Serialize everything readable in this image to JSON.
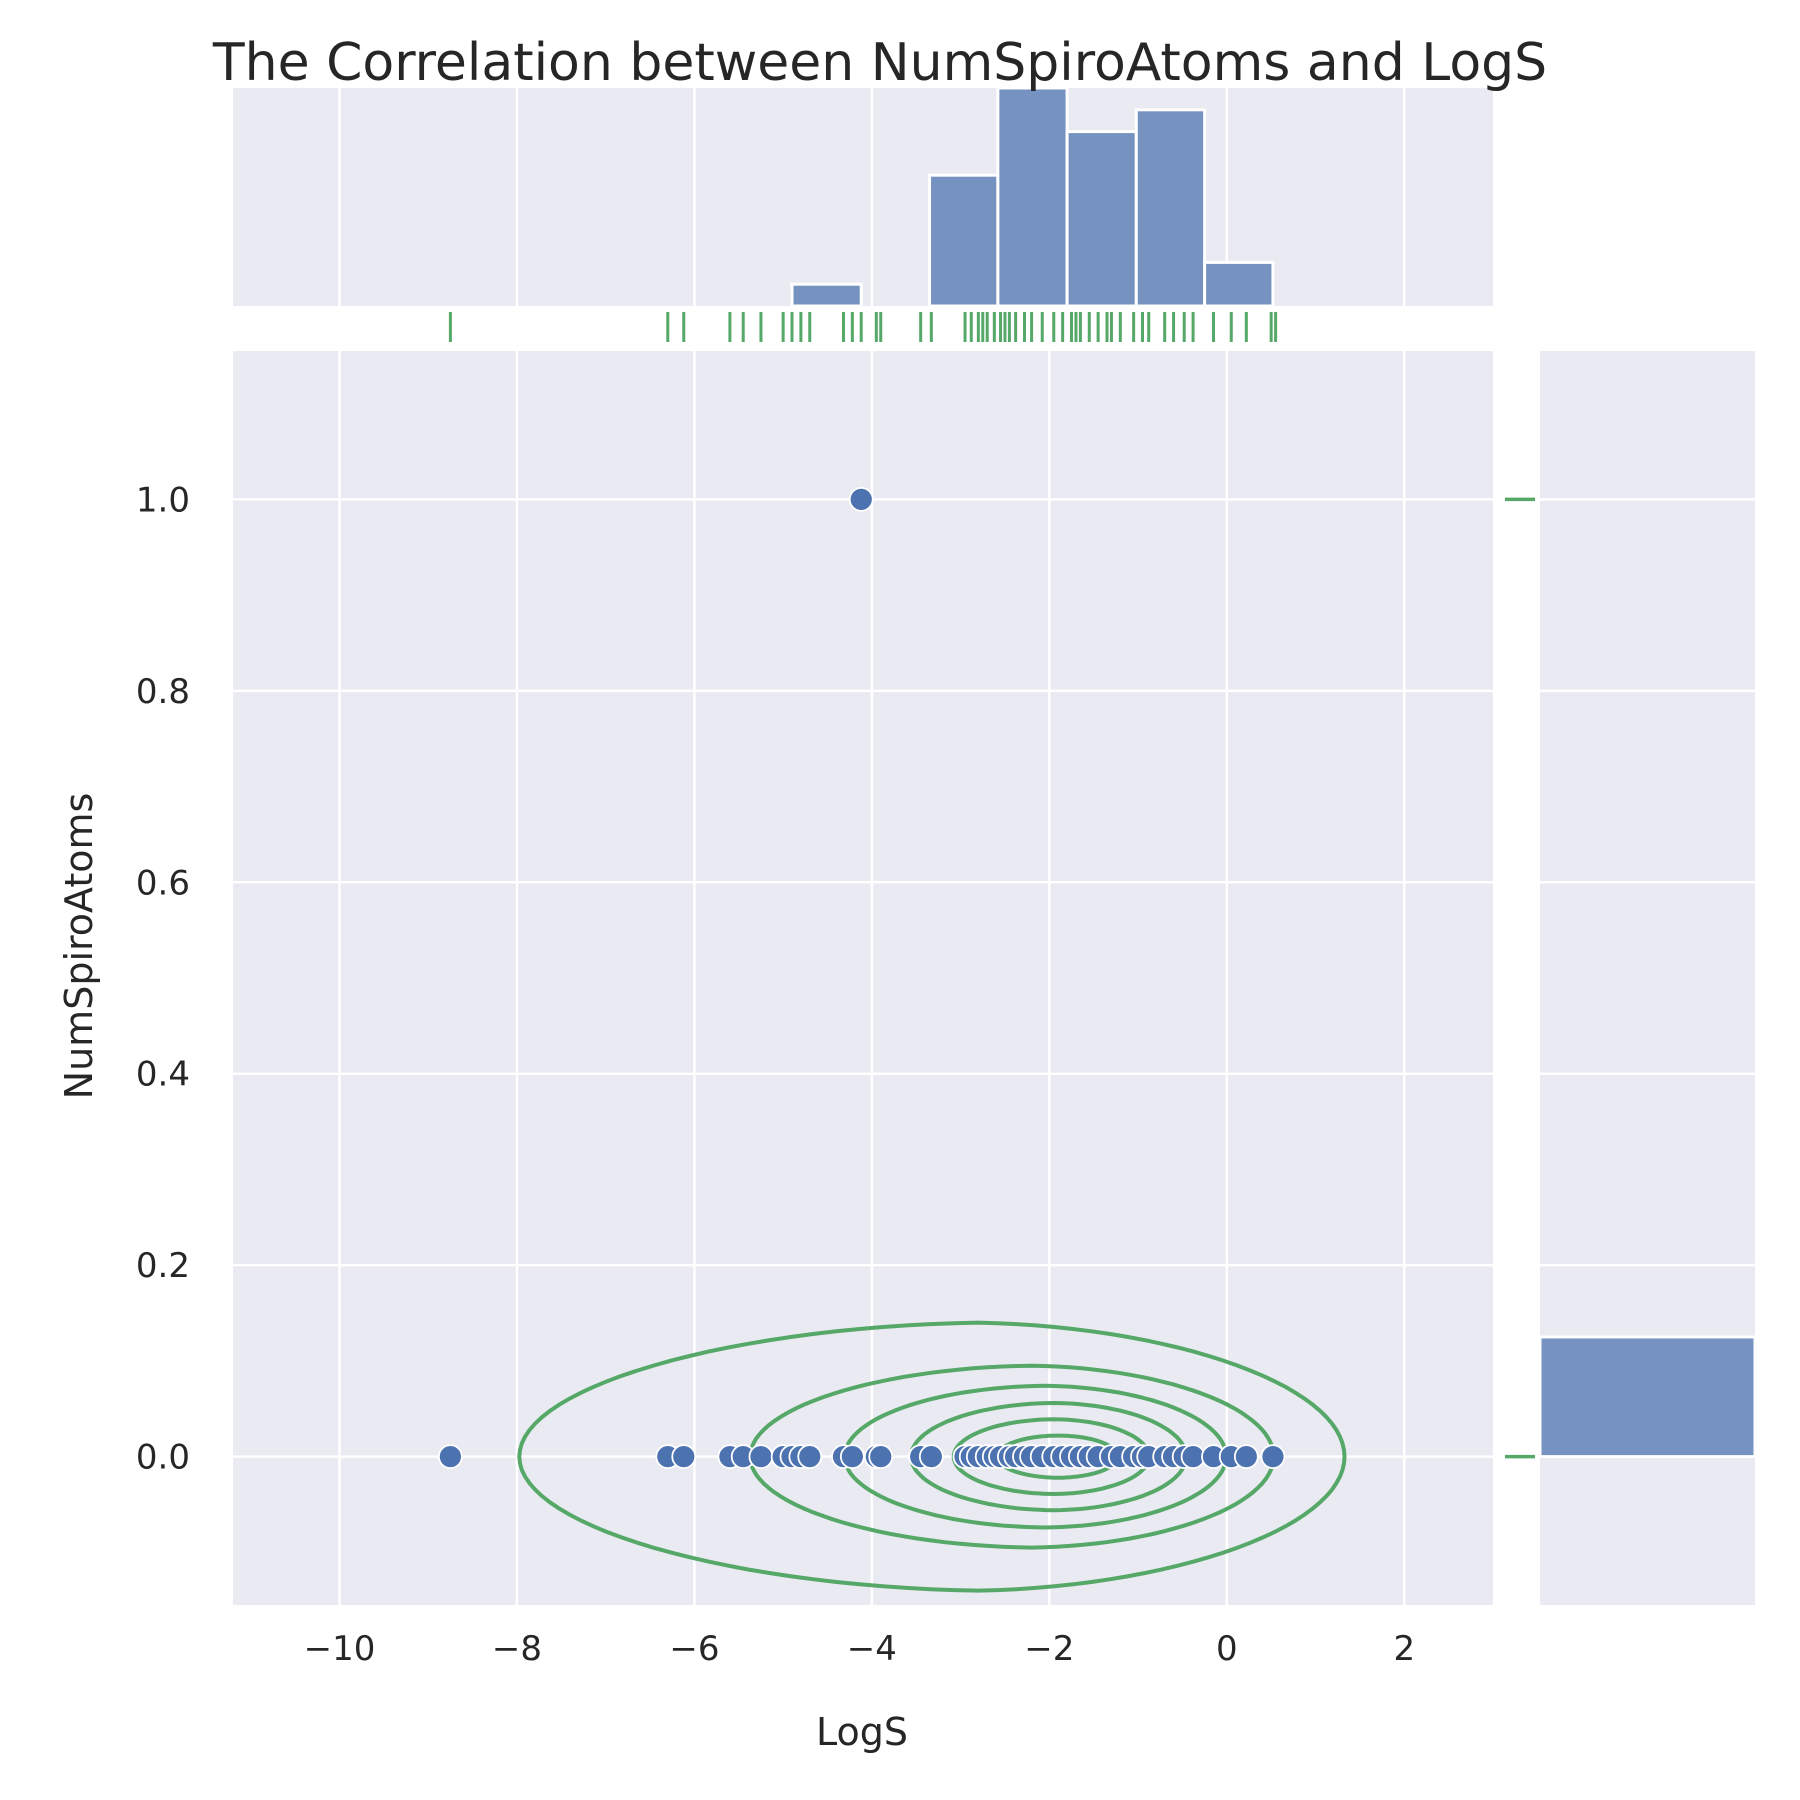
{
  "colors": {
    "panel_bg": "#eaeaf2",
    "grid": "#ffffff",
    "scatter": "#4c72b0",
    "hist": "#7592c0",
    "kde_rug": "#55a868"
  },
  "chart_data": {
    "type": "scatter",
    "title": "The Correlation between NumSpiroAtoms and LogS",
    "xlabel": "LogS",
    "ylabel": "NumSpiroAtoms",
    "xlim": [
      -11.2,
      3.0
    ],
    "ylim": [
      -0.155,
      1.155
    ],
    "x_ticks": [
      -10,
      -8,
      -6,
      -4,
      -2,
      0,
      2
    ],
    "x_tick_labels": [
      "−10",
      "−8",
      "−6",
      "−4",
      "−2",
      "0",
      "2"
    ],
    "y_ticks": [
      0.0,
      0.2,
      0.4,
      0.6,
      0.8,
      1.0
    ],
    "y_tick_labels": [
      "0.0",
      "0.2",
      "0.4",
      "0.6",
      "0.8",
      "1.0"
    ],
    "grid": true,
    "points": [
      {
        "x": -8.75,
        "y": 0
      },
      {
        "x": -6.3,
        "y": 0
      },
      {
        "x": -6.12,
        "y": 0
      },
      {
        "x": -5.6,
        "y": 0
      },
      {
        "x": -5.45,
        "y": 0
      },
      {
        "x": -5.25,
        "y": 0
      },
      {
        "x": -5.0,
        "y": 0
      },
      {
        "x": -4.9,
        "y": 0
      },
      {
        "x": -4.8,
        "y": 0
      },
      {
        "x": -4.7,
        "y": 0
      },
      {
        "x": -4.32,
        "y": 0
      },
      {
        "x": -4.22,
        "y": 0
      },
      {
        "x": -4.12,
        "y": 1
      },
      {
        "x": -3.95,
        "y": 0
      },
      {
        "x": -3.9,
        "y": 0
      },
      {
        "x": -3.45,
        "y": 0
      },
      {
        "x": -3.33,
        "y": 0
      },
      {
        "x": -2.95,
        "y": 0
      },
      {
        "x": -2.88,
        "y": 0
      },
      {
        "x": -2.8,
        "y": 0
      },
      {
        "x": -2.7,
        "y": 0
      },
      {
        "x": -2.62,
        "y": 0
      },
      {
        "x": -2.55,
        "y": 0
      },
      {
        "x": -2.45,
        "y": 0
      },
      {
        "x": -2.38,
        "y": 0
      },
      {
        "x": -2.28,
        "y": 0
      },
      {
        "x": -2.2,
        "y": 0
      },
      {
        "x": -2.08,
        "y": 0
      },
      {
        "x": -1.95,
        "y": 0
      },
      {
        "x": -1.85,
        "y": 0
      },
      {
        "x": -1.75,
        "y": 0
      },
      {
        "x": -1.65,
        "y": 0
      },
      {
        "x": -1.55,
        "y": 0
      },
      {
        "x": -1.45,
        "y": 0
      },
      {
        "x": -1.3,
        "y": 0
      },
      {
        "x": -1.2,
        "y": 0
      },
      {
        "x": -1.05,
        "y": 0
      },
      {
        "x": -0.95,
        "y": 0
      },
      {
        "x": -0.88,
        "y": 0
      },
      {
        "x": -0.7,
        "y": 0
      },
      {
        "x": -0.6,
        "y": 0
      },
      {
        "x": -0.48,
        "y": 0
      },
      {
        "x": -0.38,
        "y": 0
      },
      {
        "x": -0.15,
        "y": 0
      },
      {
        "x": 0.05,
        "y": 0
      },
      {
        "x": 0.22,
        "y": 0
      },
      {
        "x": 0.52,
        "y": 0
      }
    ],
    "x_histogram": {
      "bin_edges": [
        -4.9,
        -4.12,
        -3.35,
        -2.58,
        -1.8,
        -1.02,
        -0.25,
        0.52
      ],
      "counts": [
        1,
        0,
        6,
        10,
        8,
        9,
        2
      ]
    },
    "y_histogram": {
      "bins": [
        {
          "start": 0.0,
          "end": 0.125,
          "count": 46
        }
      ],
      "count_max": 46
    },
    "kde_contours": [
      {
        "cx": -2.8,
        "cy": 0.0,
        "rx": 4.65,
        "ry": 0.14,
        "skew": 0.45
      },
      {
        "cx": -2.2,
        "cy": 0.0,
        "rx": 2.95,
        "ry": 0.095,
        "skew": 0.3
      },
      {
        "cx": -2.05,
        "cy": 0.0,
        "rx": 2.15,
        "ry": 0.074,
        "skew": 0.2
      },
      {
        "cx": -1.95,
        "cy": 0.0,
        "rx": 1.55,
        "ry": 0.056,
        "skew": 0.15
      },
      {
        "cx": -1.95,
        "cy": 0.0,
        "rx": 1.1,
        "ry": 0.039,
        "skew": 0.1
      },
      {
        "cx": -1.9,
        "cy": 0.0,
        "rx": 0.68,
        "ry": 0.022,
        "skew": 0.05
      }
    ],
    "rug_x": [
      -8.75,
      -6.3,
      -6.12,
      -5.6,
      -5.45,
      -5.25,
      -5.0,
      -4.9,
      -4.8,
      -4.7,
      -4.32,
      -4.22,
      -4.12,
      -3.95,
      -3.9,
      -3.45,
      -3.33,
      -2.95,
      -2.88,
      -2.8,
      -2.75,
      -2.7,
      -2.62,
      -2.55,
      -2.5,
      -2.45,
      -2.38,
      -2.28,
      -2.2,
      -2.08,
      -1.95,
      -1.85,
      -1.75,
      -1.7,
      -1.65,
      -1.55,
      -1.45,
      -1.35,
      -1.3,
      -1.2,
      -1.05,
      -0.95,
      -0.88,
      -0.7,
      -0.6,
      -0.48,
      -0.38,
      -0.15,
      0.05,
      0.22,
      0.5,
      0.55
    ],
    "rug_y": [
      0.0,
      1.0
    ]
  }
}
